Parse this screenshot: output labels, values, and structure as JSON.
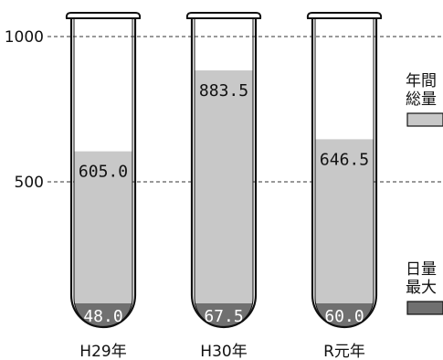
{
  "chart_data": {
    "type": "bar",
    "categories": [
      "H29年",
      "H30年",
      "R元年"
    ],
    "series": [
      {
        "name": "年間総量",
        "values": [
          605.0,
          883.5,
          646.5
        ],
        "color": "#c8c8c8"
      },
      {
        "name": "日量最大",
        "values": [
          48.0,
          67.5,
          60.0
        ],
        "color": "#707070"
      }
    ],
    "value_labels": {
      "annual": [
        "605.0",
        "883.5",
        "646.5"
      ],
      "daily": [
        "48.0",
        "67.5",
        "60.0"
      ]
    },
    "yticks": [
      500,
      1000
    ],
    "ytick_labels": [
      "500",
      "1000"
    ],
    "ylim": [
      0,
      1000
    ],
    "grid": true,
    "legend_position": "right",
    "legend": [
      {
        "line1": "年間",
        "line2": "総量",
        "color": "#c8c8c8"
      },
      {
        "line1": "日量",
        "line2": "最大",
        "color": "#707070"
      }
    ],
    "title": "",
    "xlabel": "",
    "ylabel": ""
  }
}
